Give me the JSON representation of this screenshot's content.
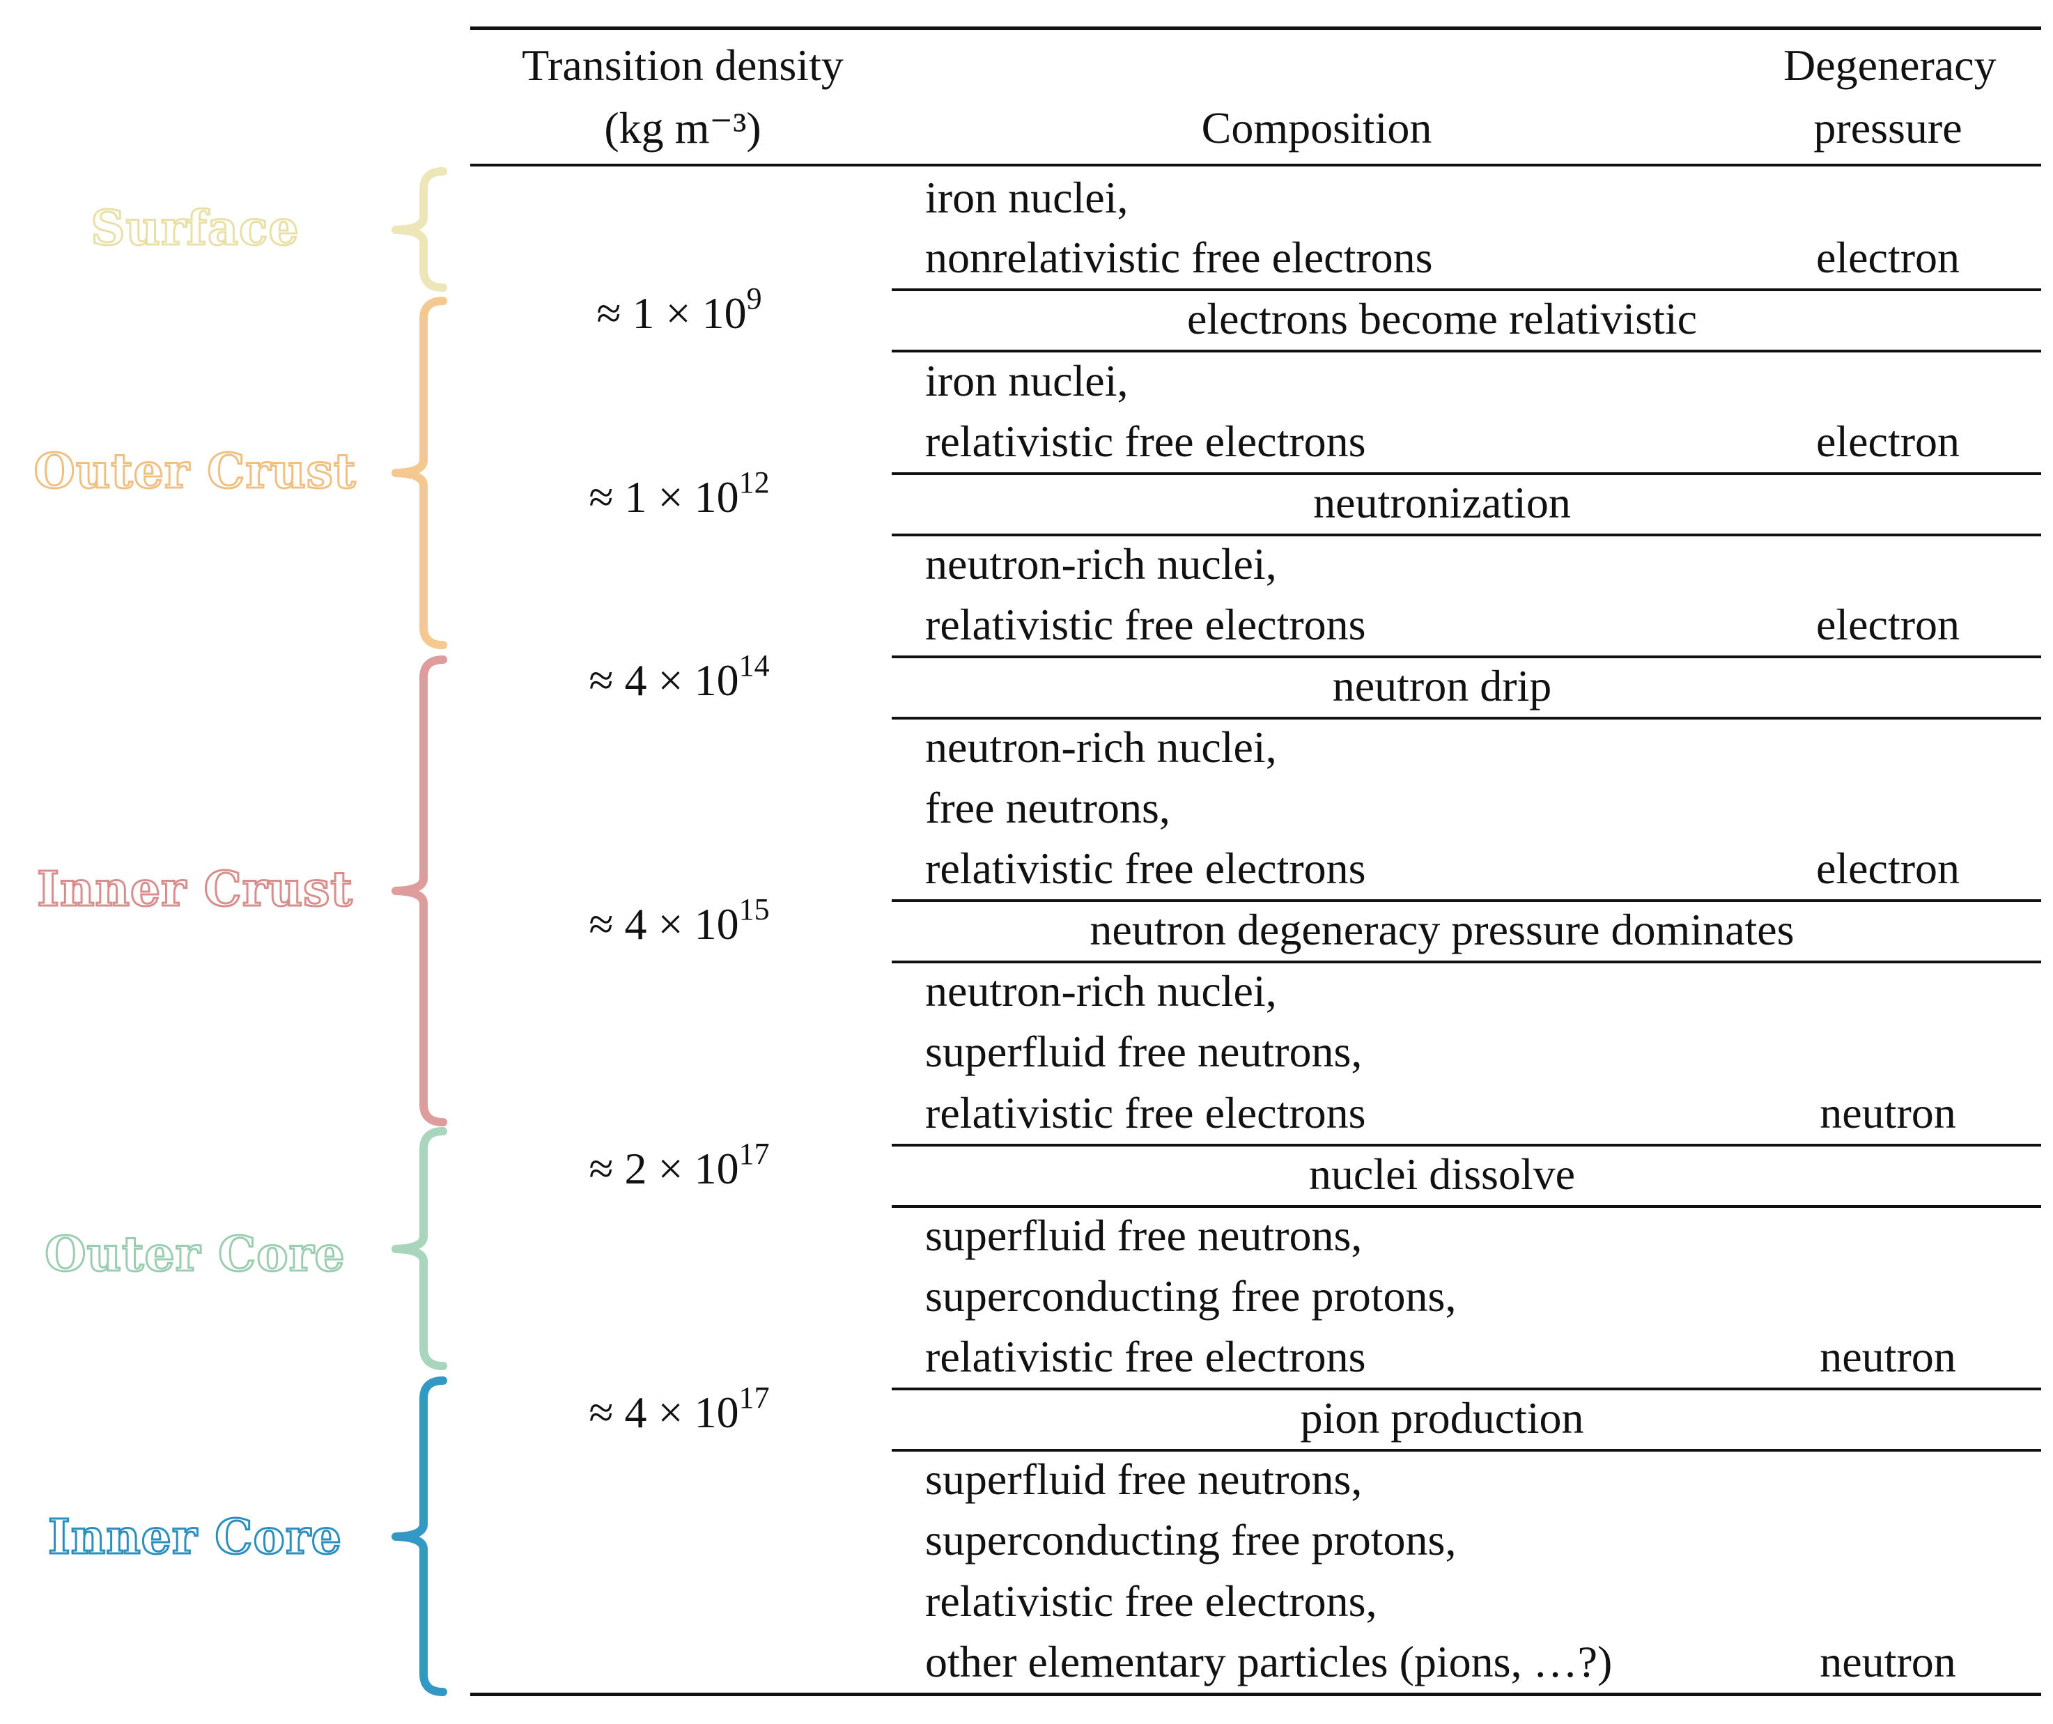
{
  "header": {
    "transition_density_line1": "Transition density",
    "transition_density_unit": "(kg m⁻³)",
    "composition": "Composition",
    "degeneracy_line1": "Degeneracy",
    "degeneracy_line2": "pressure"
  },
  "layers": [
    {
      "label": "Surface",
      "color": "#ece6b8",
      "text_color": "#e8e0a6"
    },
    {
      "label": "Outer Crust",
      "color": "#f3c98f",
      "text_color": "#f0c083"
    },
    {
      "label": "Inner Crust",
      "color": "#de9c9c",
      "text_color": "#d98e8e"
    },
    {
      "label": "Outer Core",
      "color": "#a9d5bd",
      "text_color": "#9ccdb0"
    },
    {
      "label": "Inner Core",
      "color": "#3398c4",
      "text_color": "#2b8fbd"
    }
  ],
  "densities": [
    {
      "prefix": "≈ 1 × 10",
      "exponent": "9"
    },
    {
      "prefix": "≈ 1 × 10",
      "exponent": "12"
    },
    {
      "prefix": "≈ 4 × 10",
      "exponent": "14"
    },
    {
      "prefix": "≈ 4 × 10",
      "exponent": "15"
    },
    {
      "prefix": "≈ 2 × 10",
      "exponent": "17"
    },
    {
      "prefix": "≈ 4 × 10",
      "exponent": "17"
    }
  ],
  "compositions": [
    {
      "lines": [
        "iron nuclei,",
        "nonrelativistic free electrons"
      ],
      "pressure": "electron"
    },
    {
      "lines": [
        "iron nuclei,",
        "relativistic free electrons"
      ],
      "pressure": "electron"
    },
    {
      "lines": [
        "neutron-rich nuclei,",
        "relativistic free electrons"
      ],
      "pressure": "electron"
    },
    {
      "lines": [
        "neutron-rich nuclei,",
        "free neutrons,",
        "relativistic free electrons"
      ],
      "pressure": "electron"
    },
    {
      "lines": [
        "neutron-rich nuclei,",
        "superfluid free neutrons,",
        "relativistic free electrons"
      ],
      "pressure": "neutron"
    },
    {
      "lines": [
        "superfluid free neutrons,",
        "superconducting free protons,",
        "relativistic free electrons"
      ],
      "pressure": "neutron"
    },
    {
      "lines": [
        "superfluid free neutrons,",
        "superconducting free protons,",
        "relativistic free electrons,",
        "other elementary particles (pions, …?)"
      ],
      "pressure": "neutron"
    }
  ],
  "transitions": [
    "electrons become relativistic",
    "neutronization",
    "neutron drip",
    "neutron degeneracy pressure dominates",
    "nuclei dissolve",
    "pion production"
  ]
}
